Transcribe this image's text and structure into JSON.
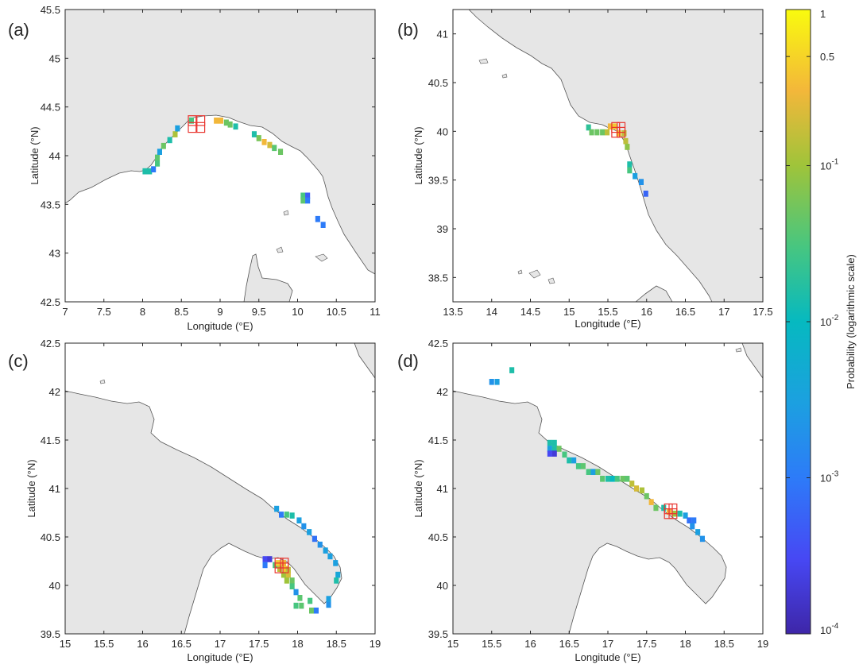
{
  "figure": {
    "colorbar": {
      "label": "Probability (logarithmic scale)",
      "scale": "log",
      "range": [
        0.0001,
        1
      ],
      "colormap": "parula",
      "tick_labels": [
        {
          "value": 1,
          "base": "1",
          "exp": ""
        },
        {
          "value": 0.5,
          "base": "0.5",
          "exp": ""
        },
        {
          "value": 0.1,
          "base": "10",
          "exp": "-1"
        },
        {
          "value": 0.01,
          "base": "10",
          "exp": "-2"
        },
        {
          "value": 0.001,
          "base": "10",
          "exp": "-3"
        },
        {
          "value": 0.0001,
          "base": "10",
          "exp": "-4"
        }
      ]
    }
  },
  "chart_data": [
    {
      "type": "heatmap",
      "panel": "(a)",
      "xlabel": "Longitude (°E)",
      "ylabel": "Latitude (°N)",
      "xlim": [
        7,
        11
      ],
      "ylim": [
        42.5,
        45.5
      ],
      "xticks": [
        7,
        7.5,
        8,
        8.5,
        9,
        9.5,
        10,
        10.5,
        11
      ],
      "yticks": [
        42.5,
        43,
        43.5,
        44,
        44.5,
        45,
        45.5
      ],
      "land_color": "#e6e6e6",
      "cell_size_deg": 0.0625,
      "cells": [
        {
          "lon": 8.03,
          "lat": 43.84,
          "p": 0.015
        },
        {
          "lon": 8.09,
          "lat": 43.84,
          "p": 0.015
        },
        {
          "lon": 8.14,
          "lat": 43.86,
          "p": 0.001
        },
        {
          "lon": 8.19,
          "lat": 43.92,
          "p": 0.03
        },
        {
          "lon": 8.19,
          "lat": 43.98,
          "p": 0.04
        },
        {
          "lon": 8.22,
          "lat": 44.04,
          "p": 0.003
        },
        {
          "lon": 8.27,
          "lat": 44.1,
          "p": 0.05
        },
        {
          "lon": 8.35,
          "lat": 44.16,
          "p": 0.015
        },
        {
          "lon": 8.42,
          "lat": 44.22,
          "p": 0.12
        },
        {
          "lon": 8.45,
          "lat": 44.28,
          "p": 0.003
        },
        {
          "lon": 8.63,
          "lat": 44.36,
          "p": 0.03
        },
        {
          "lon": 8.95,
          "lat": 44.36,
          "p": 0.3
        },
        {
          "lon": 9.01,
          "lat": 44.36,
          "p": 0.3
        },
        {
          "lon": 9.08,
          "lat": 44.34,
          "p": 0.05
        },
        {
          "lon": 9.13,
          "lat": 44.32,
          "p": 0.05
        },
        {
          "lon": 9.2,
          "lat": 44.3,
          "p": 0.015
        },
        {
          "lon": 9.44,
          "lat": 44.22,
          "p": 0.015
        },
        {
          "lon": 9.5,
          "lat": 44.18,
          "p": 0.06
        },
        {
          "lon": 9.57,
          "lat": 44.14,
          "p": 0.3
        },
        {
          "lon": 9.64,
          "lat": 44.11,
          "p": 0.2
        },
        {
          "lon": 9.7,
          "lat": 44.08,
          "p": 0.04
        },
        {
          "lon": 9.78,
          "lat": 44.04,
          "p": 0.05
        },
        {
          "lon": 10.07,
          "lat": 43.59,
          "p": 0.03
        },
        {
          "lon": 10.13,
          "lat": 43.59,
          "p": 0.0005
        },
        {
          "lon": 10.07,
          "lat": 43.54,
          "p": 0.04
        },
        {
          "lon": 10.13,
          "lat": 43.54,
          "p": 0.001
        },
        {
          "lon": 10.26,
          "lat": 43.35,
          "p": 0.001
        },
        {
          "lon": 10.33,
          "lat": 43.29,
          "p": 0.001
        }
      ],
      "release_cells": [
        {
          "lon": 8.64,
          "lat": 44.36
        },
        {
          "lon": 8.75,
          "lat": 44.36
        },
        {
          "lon": 8.64,
          "lat": 44.29
        },
        {
          "lon": 8.75,
          "lat": 44.29
        }
      ]
    },
    {
      "type": "heatmap",
      "panel": "(b)",
      "xlabel": "Longitude (°E)",
      "ylabel": "Latitude (°N)",
      "xlim": [
        13.5,
        17.5
      ],
      "ylim": [
        38.25,
        41.25
      ],
      "xticks": [
        13.5,
        14,
        14.5,
        15,
        15.5,
        16,
        16.5,
        17,
        17.5
      ],
      "yticks": [
        38.5,
        39,
        39.5,
        40,
        40.5,
        41
      ],
      "land_color": "#e6e6e6",
      "cell_size_deg": 0.0625,
      "cells": [
        {
          "lon": 15.25,
          "lat": 40.04,
          "p": 0.02
        },
        {
          "lon": 15.29,
          "lat": 39.99,
          "p": 0.05
        },
        {
          "lon": 15.36,
          "lat": 39.99,
          "p": 0.05
        },
        {
          "lon": 15.43,
          "lat": 39.99,
          "p": 0.05
        },
        {
          "lon": 15.49,
          "lat": 39.99,
          "p": 0.15
        },
        {
          "lon": 15.53,
          "lat": 40.05,
          "p": 0.3
        },
        {
          "lon": 15.59,
          "lat": 40.05,
          "p": 0.4
        },
        {
          "lon": 15.64,
          "lat": 39.98,
          "p": 0.4
        },
        {
          "lon": 15.71,
          "lat": 39.98,
          "p": 0.15
        },
        {
          "lon": 15.73,
          "lat": 39.9,
          "p": 0.15
        },
        {
          "lon": 15.75,
          "lat": 39.84,
          "p": 0.08
        },
        {
          "lon": 15.78,
          "lat": 39.66,
          "p": 0.015
        },
        {
          "lon": 15.78,
          "lat": 39.6,
          "p": 0.03
        },
        {
          "lon": 15.85,
          "lat": 39.54,
          "p": 0.003
        },
        {
          "lon": 15.93,
          "lat": 39.48,
          "p": 0.002
        },
        {
          "lon": 15.99,
          "lat": 39.36,
          "p": 0.0006
        }
      ],
      "release_cells": [
        {
          "lon": 15.6,
          "lat": 40.04
        },
        {
          "lon": 15.67,
          "lat": 40.04
        },
        {
          "lon": 15.6,
          "lat": 39.99
        },
        {
          "lon": 15.67,
          "lat": 39.99
        }
      ]
    },
    {
      "type": "heatmap",
      "panel": "(c)",
      "xlabel": "Longitude (°E)",
      "ylabel": "Latitude (°N)",
      "xlim": [
        15,
        19
      ],
      "ylim": [
        39.5,
        42.5
      ],
      "xticks": [
        15,
        15.5,
        16,
        16.5,
        17,
        17.5,
        18,
        18.5,
        19
      ],
      "yticks": [
        39.5,
        40,
        40.5,
        41,
        41.5,
        42,
        42.5
      ],
      "land_color": "#e6e6e6",
      "cell_size_deg": 0.0625,
      "cells": [
        {
          "lon": 17.73,
          "lat": 40.79,
          "p": 0.003
        },
        {
          "lon": 17.79,
          "lat": 40.73,
          "p": 0.001
        },
        {
          "lon": 17.86,
          "lat": 40.73,
          "p": 0.03
        },
        {
          "lon": 17.93,
          "lat": 40.72,
          "p": 0.015
        },
        {
          "lon": 18.02,
          "lat": 40.67,
          "p": 0.003
        },
        {
          "lon": 18.08,
          "lat": 40.61,
          "p": 0.002
        },
        {
          "lon": 18.15,
          "lat": 40.55,
          "p": 0.003
        },
        {
          "lon": 18.22,
          "lat": 40.48,
          "p": 0.0008
        },
        {
          "lon": 18.29,
          "lat": 40.42,
          "p": 0.002
        },
        {
          "lon": 18.36,
          "lat": 40.36,
          "p": 0.003
        },
        {
          "lon": 18.42,
          "lat": 40.3,
          "p": 0.003
        },
        {
          "lon": 18.49,
          "lat": 40.23,
          "p": 0.003
        },
        {
          "lon": 18.52,
          "lat": 40.11,
          "p": 0.004
        },
        {
          "lon": 18.5,
          "lat": 40.05,
          "p": 0.015
        },
        {
          "lon": 17.58,
          "lat": 40.27,
          "p": 0.0003
        },
        {
          "lon": 17.64,
          "lat": 40.27,
          "p": 0.0002
        },
        {
          "lon": 17.58,
          "lat": 40.21,
          "p": 0.001
        },
        {
          "lon": 17.71,
          "lat": 40.21,
          "p": 0.03
        },
        {
          "lon": 17.75,
          "lat": 40.23,
          "p": 0.4
        },
        {
          "lon": 17.82,
          "lat": 40.23,
          "p": 0.3
        },
        {
          "lon": 17.77,
          "lat": 40.17,
          "p": 0.15
        },
        {
          "lon": 17.84,
          "lat": 40.17,
          "p": 0.4
        },
        {
          "lon": 17.88,
          "lat": 40.16,
          "p": 0.15
        },
        {
          "lon": 17.82,
          "lat": 40.11,
          "p": 0.1
        },
        {
          "lon": 17.88,
          "lat": 40.11,
          "p": 0.2
        },
        {
          "lon": 17.86,
          "lat": 40.05,
          "p": 0.1
        },
        {
          "lon": 17.93,
          "lat": 40.05,
          "p": 0.05
        },
        {
          "lon": 17.93,
          "lat": 39.99,
          "p": 0.03
        },
        {
          "lon": 17.98,
          "lat": 39.93,
          "p": 0.002
        },
        {
          "lon": 18.03,
          "lat": 39.87,
          "p": 0.04
        },
        {
          "lon": 18.16,
          "lat": 39.84,
          "p": 0.03
        },
        {
          "lon": 17.98,
          "lat": 39.79,
          "p": 0.03
        },
        {
          "lon": 18.05,
          "lat": 39.79,
          "p": 0.04
        },
        {
          "lon": 18.18,
          "lat": 39.74,
          "p": 0.05
        },
        {
          "lon": 18.24,
          "lat": 39.74,
          "p": 0.001
        },
        {
          "lon": 18.4,
          "lat": 39.8,
          "p": 0.002
        },
        {
          "lon": 18.4,
          "lat": 39.86,
          "p": 0.003
        }
      ],
      "release_cells": [
        {
          "lon": 17.76,
          "lat": 40.23
        },
        {
          "lon": 17.83,
          "lat": 40.23
        },
        {
          "lon": 17.76,
          "lat": 40.18
        },
        {
          "lon": 17.83,
          "lat": 40.18
        }
      ]
    },
    {
      "type": "heatmap",
      "panel": "(d)",
      "xlabel": "Longitude (°E)",
      "ylabel": "Latitude (°N)",
      "xlim": [
        15,
        19
      ],
      "ylim": [
        39.5,
        42.5
      ],
      "xticks": [
        15,
        15.5,
        16,
        16.5,
        17,
        17.5,
        18,
        18.5,
        19
      ],
      "yticks": [
        39.5,
        40,
        40.5,
        41,
        41.5,
        42,
        42.5
      ],
      "land_color": "#e6e6e6",
      "cell_size_deg": 0.0625,
      "cells": [
        {
          "lon": 15.5,
          "lat": 42.1,
          "p": 0.002
        },
        {
          "lon": 15.57,
          "lat": 42.1,
          "p": 0.003
        },
        {
          "lon": 15.76,
          "lat": 42.22,
          "p": 0.015
        },
        {
          "lon": 16.25,
          "lat": 41.47,
          "p": 0.015
        },
        {
          "lon": 16.31,
          "lat": 41.47,
          "p": 0.015
        },
        {
          "lon": 16.25,
          "lat": 41.41,
          "p": 0.003
        },
        {
          "lon": 16.31,
          "lat": 41.41,
          "p": 0.015
        },
        {
          "lon": 16.37,
          "lat": 41.41,
          "p": 0.05
        },
        {
          "lon": 16.25,
          "lat": 41.36,
          "p": 0.0003
        },
        {
          "lon": 16.31,
          "lat": 41.36,
          "p": 0.0002
        },
        {
          "lon": 16.44,
          "lat": 41.35,
          "p": 0.03
        },
        {
          "lon": 16.5,
          "lat": 41.29,
          "p": 0.015
        },
        {
          "lon": 16.56,
          "lat": 41.29,
          "p": 0.003
        },
        {
          "lon": 16.62,
          "lat": 41.23,
          "p": 0.03
        },
        {
          "lon": 16.68,
          "lat": 41.23,
          "p": 0.04
        },
        {
          "lon": 16.75,
          "lat": 41.17,
          "p": 0.03
        },
        {
          "lon": 16.81,
          "lat": 41.17,
          "p": 0.003
        },
        {
          "lon": 16.87,
          "lat": 41.17,
          "p": 0.05
        },
        {
          "lon": 16.93,
          "lat": 41.1,
          "p": 0.04
        },
        {
          "lon": 17.0,
          "lat": 41.1,
          "p": 0.015
        },
        {
          "lon": 17.06,
          "lat": 41.1,
          "p": 0.01
        },
        {
          "lon": 17.12,
          "lat": 41.1,
          "p": 0.03
        },
        {
          "lon": 17.19,
          "lat": 41.1,
          "p": 0.05
        },
        {
          "lon": 17.25,
          "lat": 41.1,
          "p": 0.04
        },
        {
          "lon": 17.31,
          "lat": 41.05,
          "p": 0.15
        },
        {
          "lon": 17.37,
          "lat": 41.0,
          "p": 0.2
        },
        {
          "lon": 17.44,
          "lat": 40.98,
          "p": 0.12
        },
        {
          "lon": 17.5,
          "lat": 40.92,
          "p": 0.05
        },
        {
          "lon": 17.56,
          "lat": 40.86,
          "p": 0.3
        },
        {
          "lon": 17.62,
          "lat": 40.8,
          "p": 0.05
        },
        {
          "lon": 17.72,
          "lat": 40.8,
          "p": 0.015
        },
        {
          "lon": 17.79,
          "lat": 40.76,
          "p": 0.3
        },
        {
          "lon": 17.86,
          "lat": 40.74,
          "p": 0.1
        },
        {
          "lon": 17.93,
          "lat": 40.74,
          "p": 0.015
        },
        {
          "lon": 18.0,
          "lat": 40.72,
          "p": 0.003
        },
        {
          "lon": 18.05,
          "lat": 40.67,
          "p": 0.0008
        },
        {
          "lon": 18.11,
          "lat": 40.67,
          "p": 0.001
        },
        {
          "lon": 18.09,
          "lat": 40.61,
          "p": 0.002
        },
        {
          "lon": 18.16,
          "lat": 40.55,
          "p": 0.003
        },
        {
          "lon": 18.22,
          "lat": 40.48,
          "p": 0.002
        }
      ],
      "release_cells": [
        {
          "lon": 17.78,
          "lat": 40.79
        },
        {
          "lon": 17.84,
          "lat": 40.79
        },
        {
          "lon": 17.78,
          "lat": 40.74
        },
        {
          "lon": 17.84,
          "lat": 40.74
        }
      ]
    }
  ]
}
